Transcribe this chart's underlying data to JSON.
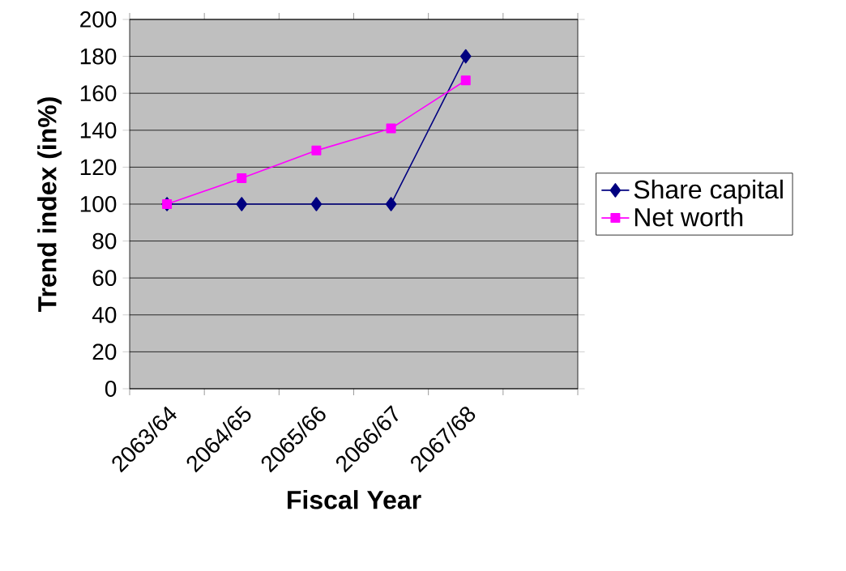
{
  "chart_data": {
    "type": "line",
    "xlabel": "Fiscal Year",
    "ylabel": "Trend index (in%)",
    "categories": [
      "2063/64",
      "2064/65",
      "2065/66",
      "2066/67",
      "2067/68",
      null
    ],
    "series": [
      {
        "name": "Share capital",
        "color": "#000080",
        "marker": "diamond",
        "values": [
          100,
          100,
          100,
          100,
          180,
          null
        ]
      },
      {
        "name": "Net worth",
        "color": "#ff00ff",
        "marker": "square",
        "values": [
          100,
          114,
          129,
          141,
          167,
          null
        ]
      }
    ],
    "ylim": [
      0,
      200
    ],
    "yticks": [
      0,
      20,
      40,
      60,
      80,
      100,
      120,
      140,
      160,
      180,
      200
    ],
    "grid": "y",
    "legend": "right"
  }
}
